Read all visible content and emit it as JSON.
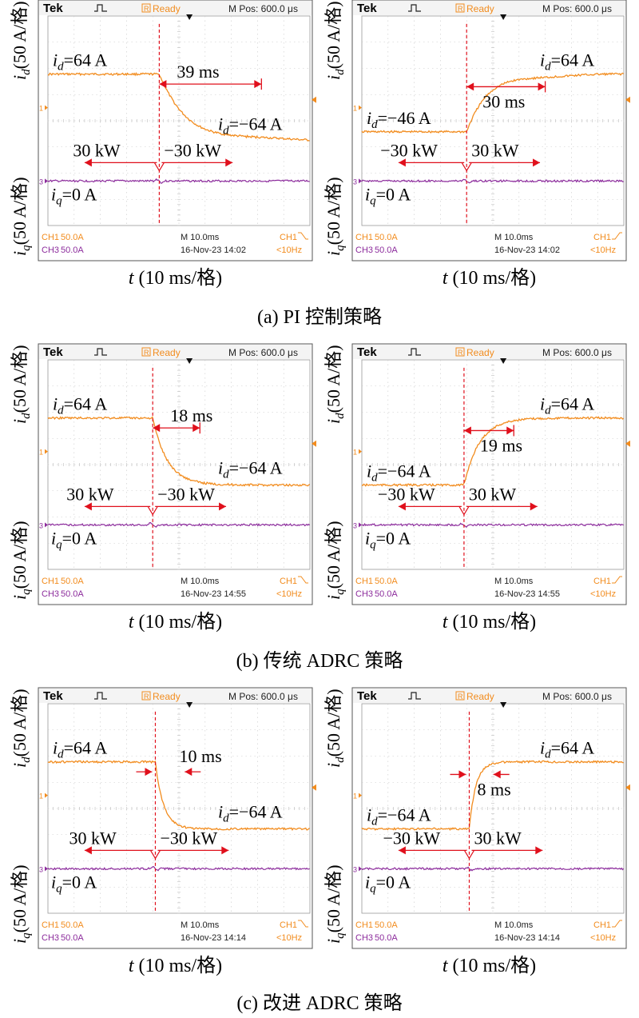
{
  "captions": [
    {
      "letter": "(a)",
      "name": "PI 控制策略"
    },
    {
      "letter": "(b)",
      "name": "传统 ADRC 策略"
    },
    {
      "letter": "(c)",
      "name": "改进 ADRC 策略"
    }
  ],
  "axis": {
    "y_unit": "(50 A/格)",
    "x_label": "(10 ms/格)"
  },
  "colors": {
    "id": "#f28c1e",
    "iq": "#8c2c9c",
    "marker": "#e0101c",
    "grid": "#c8c8c8",
    "hud": "#2a2a2a",
    "scope_bg": "#ffffff"
  },
  "scope_header": {
    "brand": "Tek",
    "trigger": "Ready",
    "trigger_badge": "R",
    "mpos": "M Pos: 600.0 μs"
  },
  "scope_footer": {
    "ch1": "CH1",
    "ch1_scale": "50.0A",
    "ch3": "CH3",
    "ch3_scale": "50.0A",
    "timebase": "M 10.0ms",
    "freq": "<10Hz"
  },
  "chart_data": [
    {
      "id": "a-left",
      "type": "line",
      "strategy": "PI 控制策略",
      "date": "16-Nov-23 14:02",
      "slope": "fall",
      "id_before": 64,
      "id_after": -64,
      "iq": 0,
      "t_step_div": 4.25,
      "settle_ms": 39,
      "power_before": "30 kW",
      "power_after": "−30 kW",
      "label_id_before": "=64 A",
      "label_id_after": "=−64 A",
      "label_iq": "=0 A",
      "label_time": "39 ms"
    },
    {
      "id": "a-right",
      "type": "line",
      "strategy": "PI 控制策略",
      "date": "16-Nov-23 14:02",
      "slope": "rise",
      "id_before": -46,
      "id_after": 64,
      "iq": 0,
      "t_step_div": 4.0,
      "settle_ms": 30,
      "power_before": "−30 kW",
      "power_after": "30 kW",
      "label_id_before": "=−46 A",
      "label_id_after": "=64 A",
      "label_iq": "=0 A",
      "label_time": "30 ms"
    },
    {
      "id": "b-left",
      "type": "line",
      "strategy": "传统 ADRC 策略",
      "date": "16-Nov-23 14:55",
      "slope": "fall",
      "id_before": 64,
      "id_after": -64,
      "iq": 0,
      "t_step_div": 4.0,
      "settle_ms": 18,
      "power_before": "30 kW",
      "power_after": "−30 kW",
      "label_id_before": "=64 A",
      "label_id_after": "=−64 A",
      "label_iq": "=0 A",
      "label_time": "18 ms"
    },
    {
      "id": "b-right",
      "type": "line",
      "strategy": "传统 ADRC 策略",
      "date": "16-Nov-23 14:55",
      "slope": "rise",
      "id_before": -64,
      "id_after": 64,
      "iq": 0,
      "t_step_div": 3.9,
      "settle_ms": 19,
      "power_before": "−30 kW",
      "power_after": "30 kW",
      "label_id_before": "=−64 A",
      "label_id_after": "=64 A",
      "label_iq": "=0 A",
      "label_time": "19 ms"
    },
    {
      "id": "c-left",
      "type": "line",
      "strategy": "改进 ADRC 策略",
      "date": "16-Nov-23 14:14",
      "slope": "fall",
      "id_before": 64,
      "id_after": -64,
      "iq": 0,
      "t_step_div": 4.1,
      "settle_ms": 10,
      "power_before": "30 kW",
      "power_after": "−30 kW",
      "label_id_before": "=64 A",
      "label_id_after": "=−64 A",
      "label_iq": "=0 A",
      "label_time": "10 ms"
    },
    {
      "id": "c-right",
      "type": "line",
      "strategy": "改进 ADRC 策略",
      "date": "16-Nov-23 14:14",
      "slope": "rise",
      "id_before": -64,
      "id_after": 64,
      "iq": 0,
      "t_step_div": 4.1,
      "settle_ms": 8,
      "power_before": "−30 kW",
      "power_after": "30 kW",
      "label_id_before": "=−64 A",
      "label_id_after": "=64 A",
      "label_iq": "=0 A",
      "label_time": "8 ms"
    }
  ]
}
